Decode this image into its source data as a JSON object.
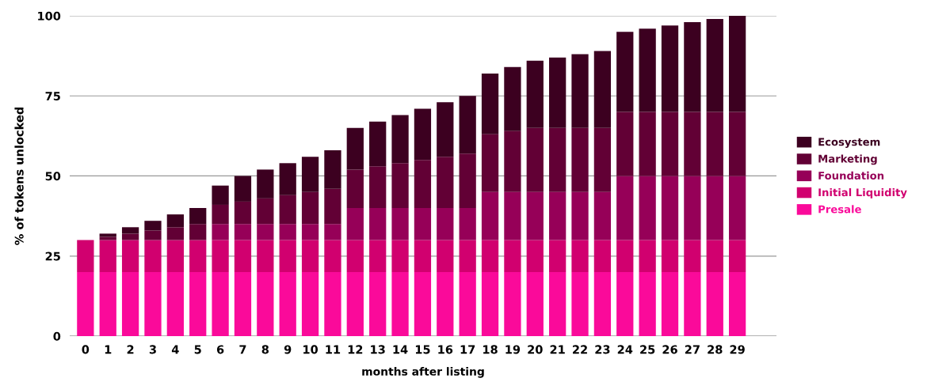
{
  "chart_data": {
    "type": "bar",
    "stacked": true,
    "xlabel": "months after listing",
    "ylabel": "% of tokens unlocked",
    "categories": [
      "0",
      "1",
      "2",
      "3",
      "4",
      "5",
      "6",
      "7",
      "8",
      "9",
      "10",
      "11",
      "12",
      "13",
      "14",
      "15",
      "16",
      "17",
      "18",
      "19",
      "20",
      "21",
      "22",
      "23",
      "24",
      "25",
      "26",
      "27",
      "28",
      "29"
    ],
    "series": [
      {
        "name": "Presale",
        "color": "#fa0a9a",
        "values": [
          20,
          20,
          20,
          20,
          20,
          20,
          20,
          20,
          20,
          20,
          20,
          20,
          20,
          20,
          20,
          20,
          20,
          20,
          20,
          20,
          20,
          20,
          20,
          20,
          20,
          20,
          20,
          20,
          20,
          20
        ]
      },
      {
        "name": "Initial Liquidity",
        "color": "#d1006f",
        "values": [
          10,
          10,
          10,
          10,
          10,
          10,
          10,
          10,
          10,
          10,
          10,
          10,
          10,
          10,
          10,
          10,
          10,
          10,
          10,
          10,
          10,
          10,
          10,
          10,
          10,
          10,
          10,
          10,
          10,
          10
        ]
      },
      {
        "name": "Foundation",
        "color": "#960058",
        "values": [
          0,
          0,
          0,
          0,
          0,
          0,
          5,
          5,
          5,
          5,
          5,
          5,
          10,
          10,
          10,
          10,
          10,
          10,
          15,
          15,
          15,
          15,
          15,
          15,
          20,
          20,
          20,
          20,
          20,
          20
        ]
      },
      {
        "name": "Marketing",
        "color": "#620035",
        "values": [
          0,
          1,
          2,
          3,
          4,
          5,
          6,
          7,
          8,
          9,
          10,
          11,
          12,
          13,
          14,
          15,
          16,
          17,
          18,
          19,
          20,
          20,
          20,
          20,
          20,
          20,
          20,
          20,
          20,
          20
        ]
      },
      {
        "name": "Ecosystem",
        "color": "#3c0020",
        "values": [
          0,
          1,
          2,
          3,
          4,
          5,
          6,
          8,
          9,
          10,
          11,
          12,
          13,
          14,
          15,
          16,
          17,
          18,
          19,
          20,
          21,
          22,
          23,
          24,
          25,
          26,
          27,
          28,
          29,
          30
        ]
      }
    ],
    "ylim": [
      0,
      100
    ],
    "yticks": [
      0,
      25,
      50,
      75,
      100
    ],
    "grid": "y",
    "legend": "right"
  }
}
